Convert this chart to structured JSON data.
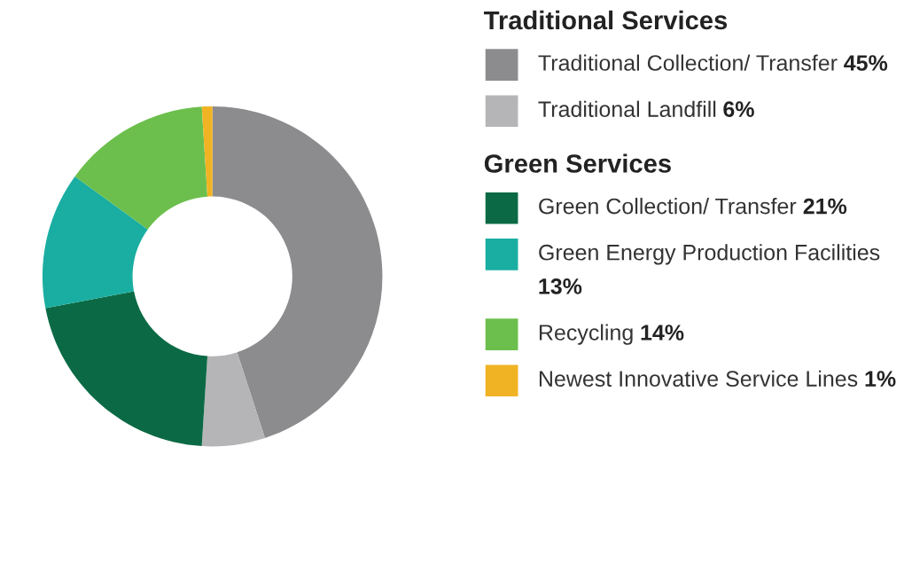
{
  "chart_data": {
    "type": "donut",
    "categories": [
      "Traditional Collection/ Transfer",
      "Traditional Landfill",
      "Green Collection/ Transfer",
      "Green Energy Production Facilities",
      "Recycling",
      "Newest Innovative Service Lines"
    ],
    "values": [
      45,
      6,
      21,
      13,
      14,
      1
    ],
    "colors": [
      "#8c8c8e",
      "#b5b5b7",
      "#0b6a45",
      "#19aea1",
      "#6cbf4c",
      "#f0b323"
    ],
    "value_labels": [
      "45%",
      "6%",
      "21%",
      "13%",
      "14%",
      "1%"
    ],
    "annotations": [
      "Traditional Services",
      "Green Services"
    ],
    "legend": "right"
  }
}
